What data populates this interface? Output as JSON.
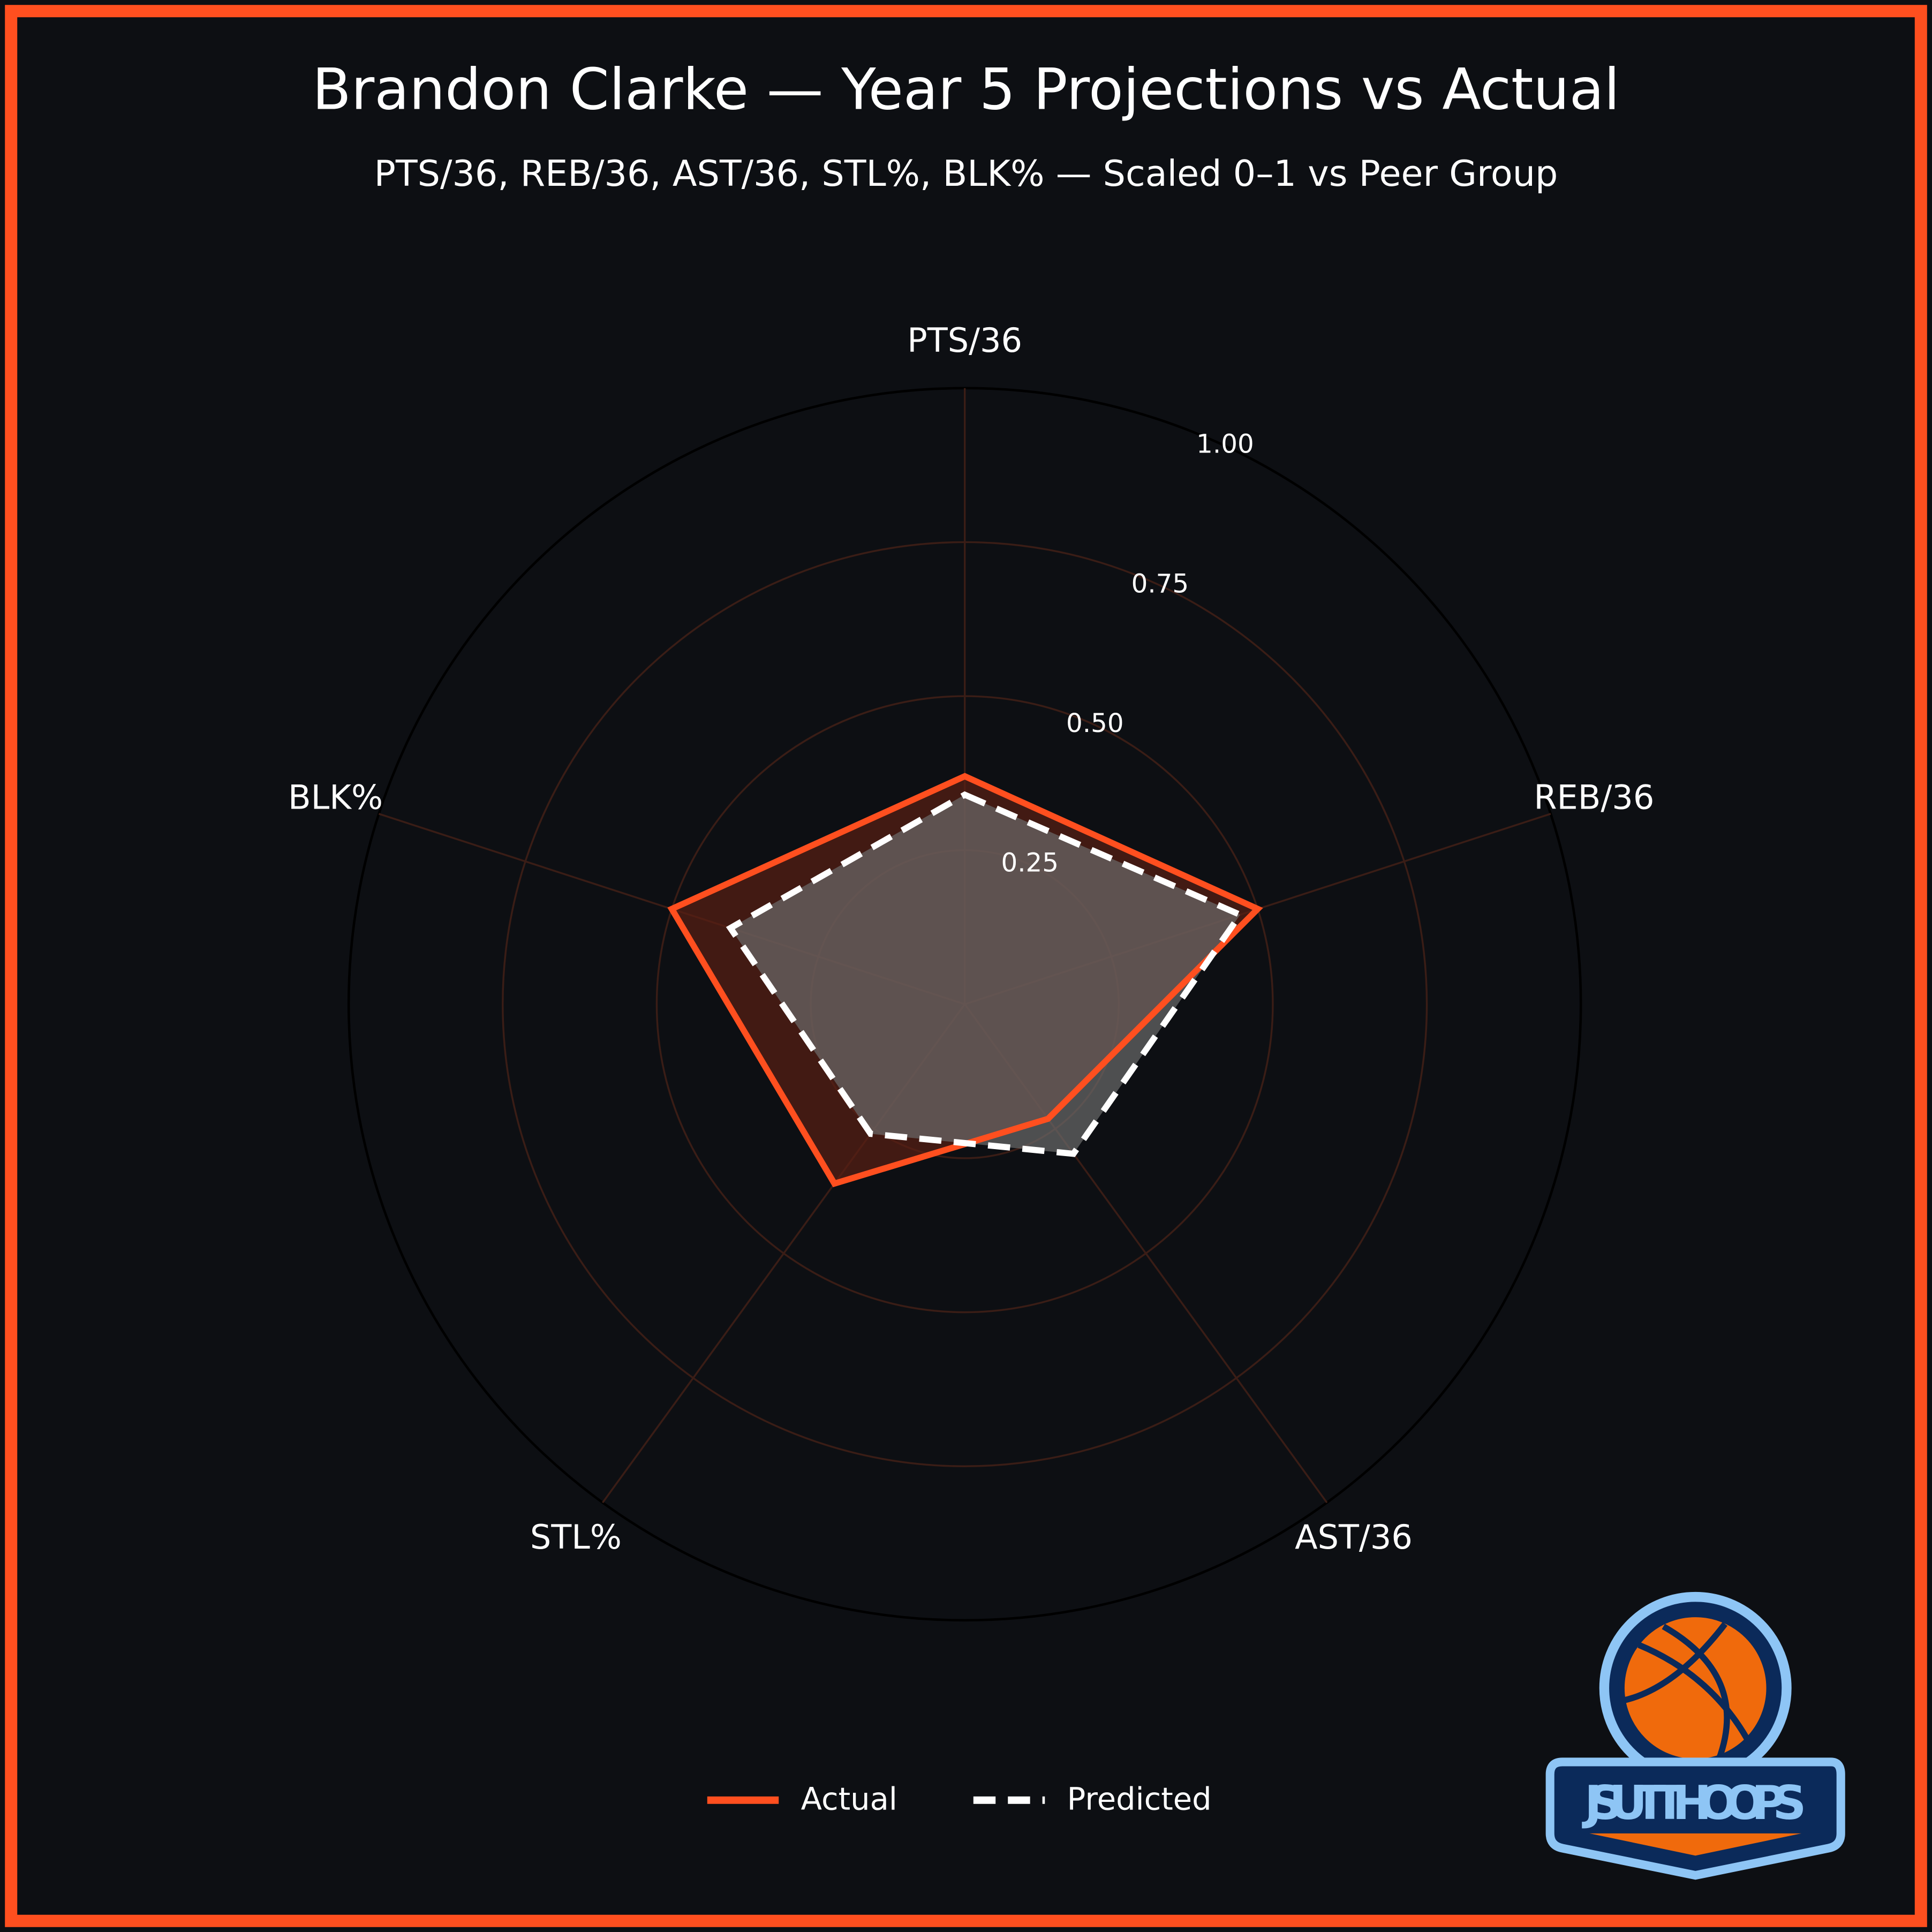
{
  "chart_data": {
    "type": "radar",
    "title": "Brandon Clarke — Year 5 Projections vs Actual",
    "subtitle": "PTS/36, REB/36, AST/36, STL%, BLK% — Scaled 0–1 vs Peer Group",
    "categories": [
      "PTS/36",
      "REB/36",
      "AST/36",
      "STL%",
      "BLK%"
    ],
    "series": [
      {
        "name": "Actual",
        "color": "#ff4f1f",
        "fill": "#5a1f14",
        "dash": false,
        "values": [
          0.37,
          0.5,
          0.23,
          0.36,
          0.5
        ]
      },
      {
        "name": "Predicted",
        "color": "#ffffff",
        "fill": "#6b6b6b",
        "dash": true,
        "values": [
          0.34,
          0.47,
          0.3,
          0.26,
          0.4
        ]
      }
    ],
    "rlim": [
      0,
      1
    ],
    "rticks": [
      {
        "value": 0.25,
        "label": "0.25"
      },
      {
        "value": 0.5,
        "label": "0.50"
      },
      {
        "value": 0.75,
        "label": "0.75"
      },
      {
        "value": 1,
        "label": "1.00"
      }
    ],
    "grid": true,
    "legend": "bottom"
  },
  "logo": {
    "text": "JSUTTHOOPS"
  }
}
